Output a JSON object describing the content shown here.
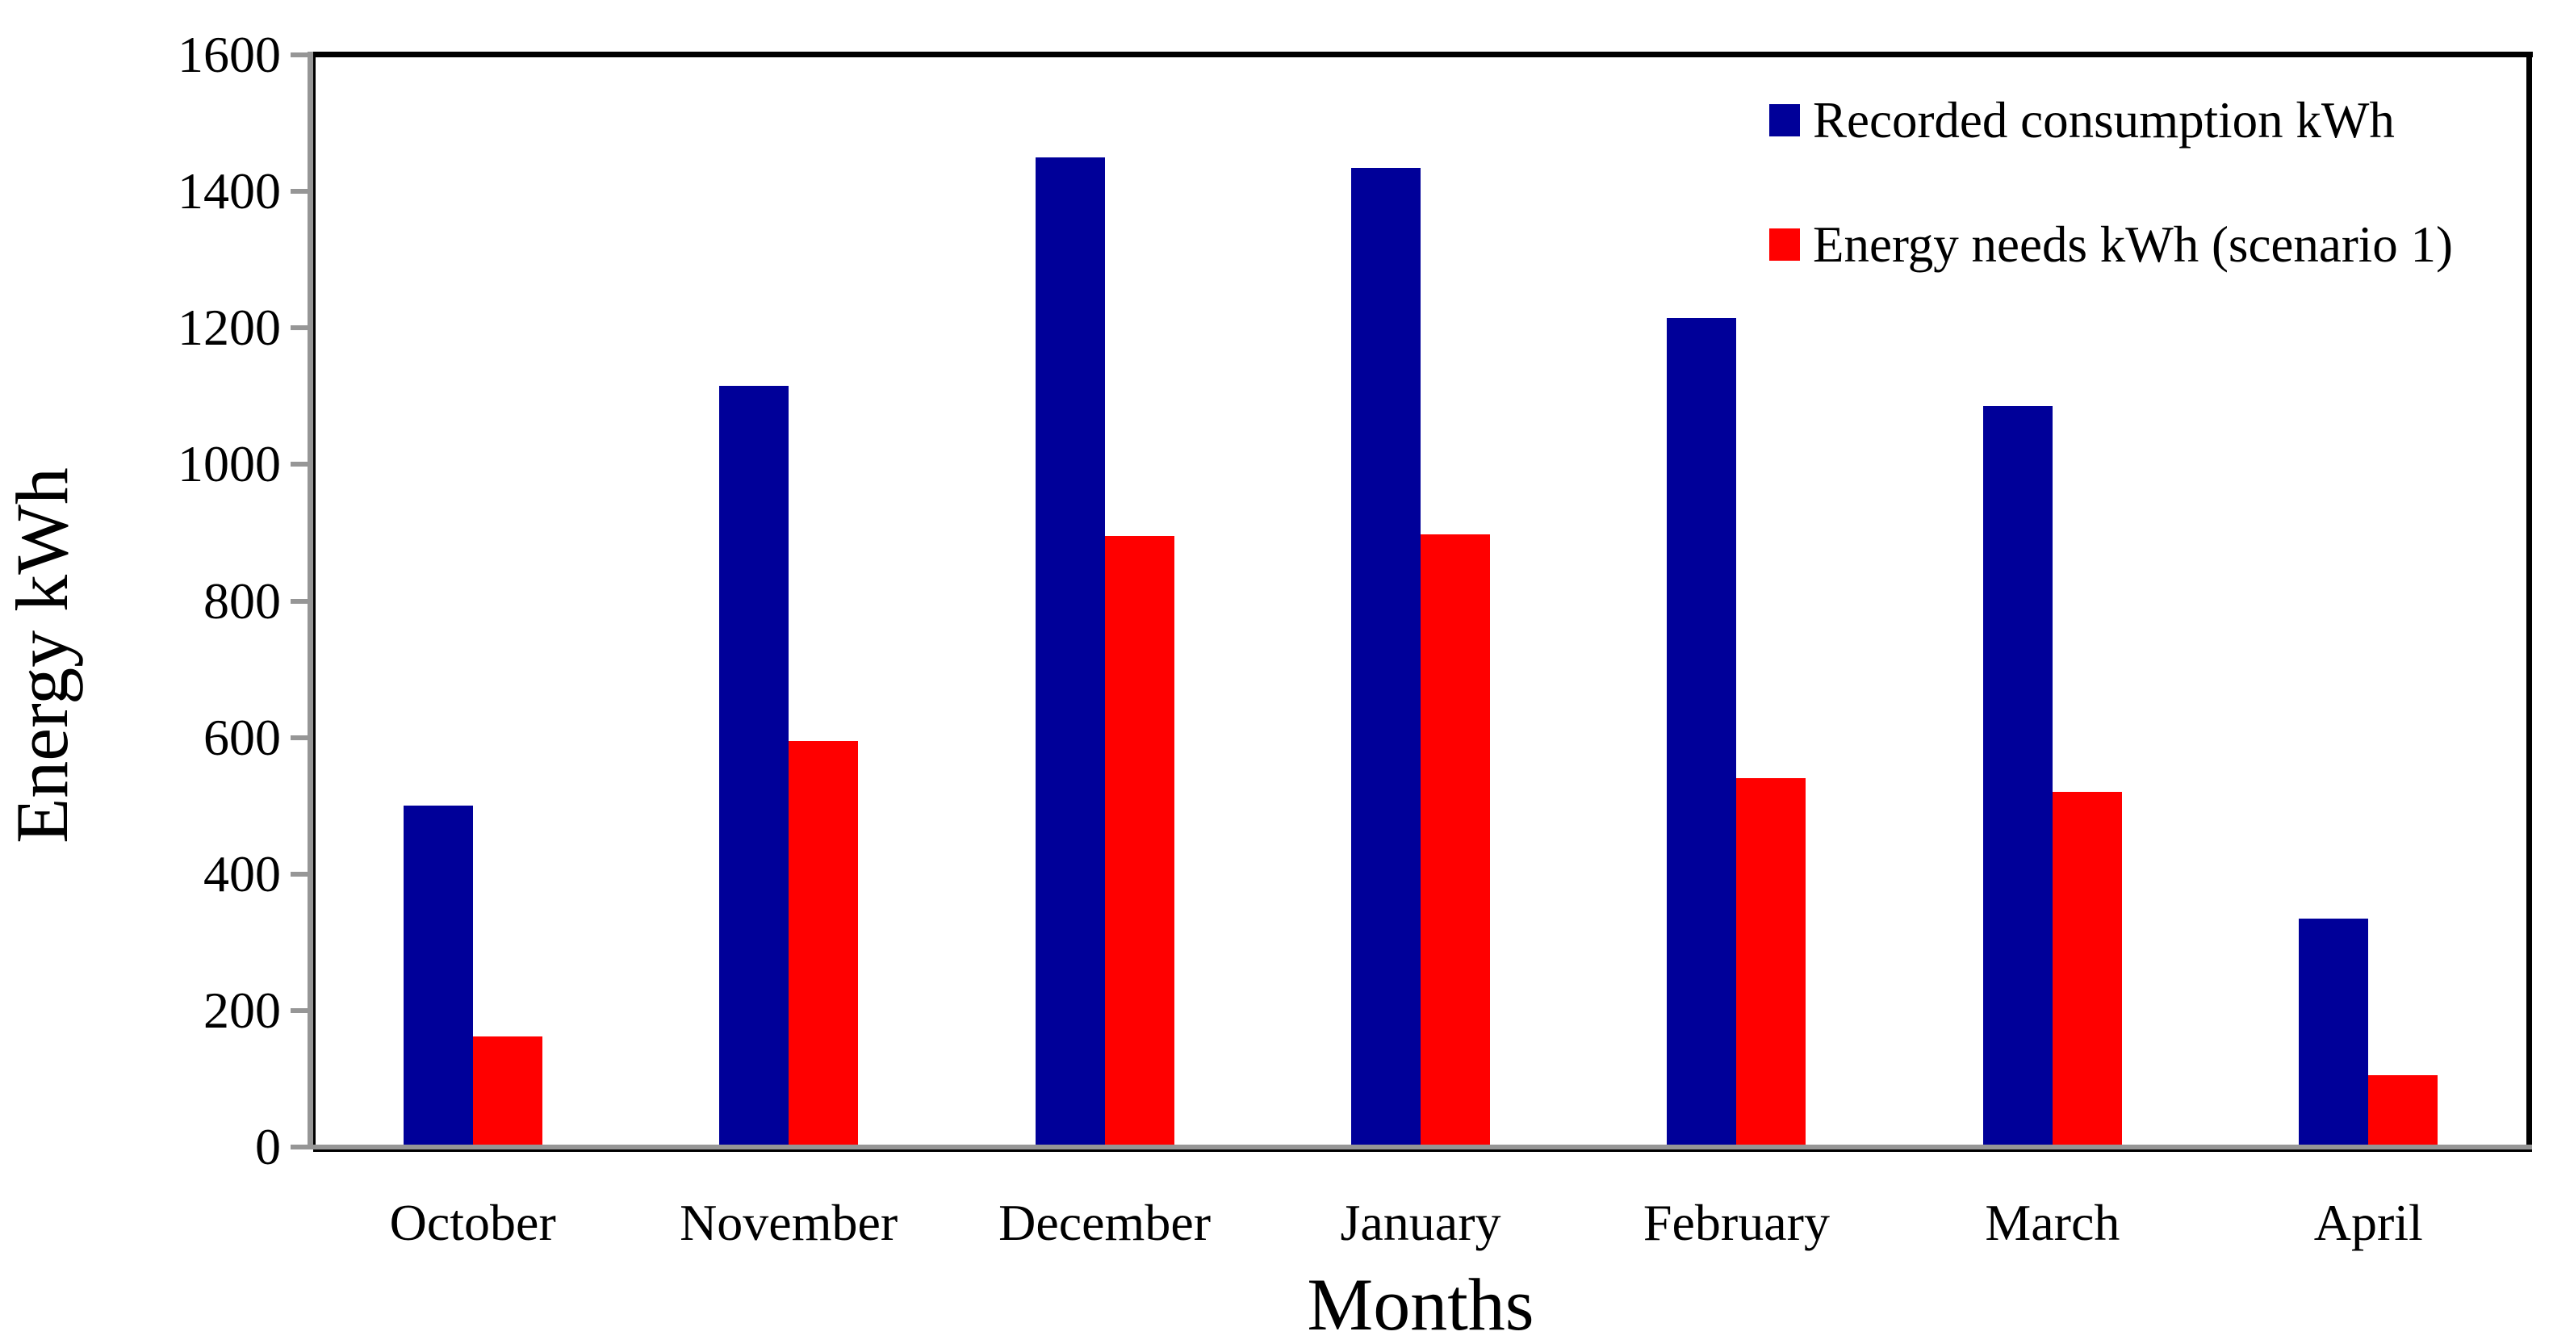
{
  "chart_data": {
    "type": "bar",
    "title": "",
    "categories": [
      "October",
      "November",
      "December",
      "January",
      "February",
      "March",
      "April"
    ],
    "series": [
      {
        "name": "Recorded consumption kWh",
        "color": "#000099",
        "values": [
          500,
          1115,
          1450,
          1435,
          1215,
          1085,
          335
        ]
      },
      {
        "name": "Energy needs kWh (scenario 1)",
        "color": "#FF0000",
        "values": [
          162,
          595,
          895,
          897,
          540,
          520,
          105
        ]
      }
    ],
    "xlabel": "Months",
    "ylabel": "Energy kWh",
    "ylim": [
      0,
      1600
    ],
    "yticks": [
      0,
      200,
      400,
      600,
      800,
      1000,
      1200,
      1400,
      1600
    ],
    "grid": false,
    "legend_position": "top-right",
    "axis_color": "#969696",
    "border_color": "#000000",
    "background": "#FFFFFF"
  }
}
